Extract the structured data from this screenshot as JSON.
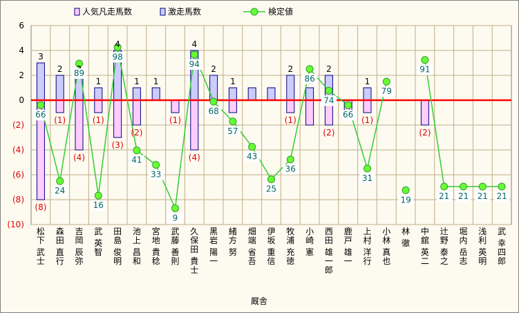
{
  "chart_data": {
    "type": "bar+line",
    "xlabel": "厩舎",
    "y_left": {
      "ylim": [
        -10,
        6
      ],
      "ticks": [
        "6",
        "4",
        "2",
        "0",
        "(2)",
        "(4)",
        "(6)",
        "(8)",
        "(10)"
      ]
    },
    "y_right": {
      "ylim": [
        0,
        110
      ]
    },
    "legend": [
      "人気凡走馬数",
      "激走馬数",
      "検定値"
    ],
    "categories": [
      "松下 武士",
      "森田 直行",
      "吉岡 辰弥",
      "武 英智",
      "田島 俊明",
      "池上 昌和",
      "宮地 貴稔",
      "武藤 善則",
      "久保田 貴士",
      "黒岩 陽一",
      "緒方 努",
      "畑端 省吾",
      "伊坂 重信",
      "牧浦 充徳",
      "小崎 憲",
      "西田 雄一郎",
      "鹿戸 雄一",
      "上村 洋行",
      "小林 真也",
      "林 徹",
      "中舘 英二",
      "辻野 泰之",
      "堀内 岳志",
      "浅利 英明",
      "武 幸四郎"
    ],
    "series": [
      {
        "name": "人気凡走馬数",
        "values": [
          -8,
          -1,
          -4,
          -1,
          -3,
          -2,
          0,
          -1,
          -4,
          0,
          -1,
          0,
          0,
          -1,
          -2,
          -2,
          -1,
          -1,
          0,
          0,
          -2,
          0,
          0,
          0,
          0
        ],
        "labels": [
          "(8)",
          "(1)",
          "(4)",
          "(1)",
          "(3)",
          "(2)",
          "",
          "(1)",
          "(4)",
          "",
          "",
          "",
          "",
          "(1)",
          "",
          "(2)",
          "",
          "(1)",
          "",
          "",
          "(2)",
          "",
          "",
          "",
          ""
        ]
      },
      {
        "name": "激走馬数",
        "values": [
          3,
          2,
          2,
          1,
          4,
          1,
          1,
          0,
          4,
          2,
          1,
          1,
          1,
          2,
          1,
          2,
          0,
          1,
          0,
          0,
          0,
          0,
          0,
          0,
          0
        ],
        "labels": [
          "3",
          "2",
          "2",
          "1",
          "4",
          "1",
          "1",
          "",
          "4",
          "2",
          "1",
          "",
          "",
          "2",
          "1",
          "2",
          "",
          "1",
          "",
          "",
          "",
          "",
          "",
          "",
          ""
        ]
      },
      {
        "name": "検定値",
        "values": [
          66,
          24,
          89,
          16,
          98,
          41,
          33,
          9,
          94,
          68,
          57,
          43,
          25,
          36,
          86,
          74,
          66,
          31,
          79,
          19,
          91,
          21,
          21,
          21,
          21
        ],
        "labels": [
          "66",
          "24",
          "89",
          "16",
          "98",
          "41",
          "33",
          "9",
          "94",
          "68",
          "57",
          "43",
          "25",
          "36",
          "86",
          "74",
          "66",
          "31",
          "79",
          "19",
          "91",
          "21",
          "21",
          "21",
          "21"
        ],
        "gaps_after_index": [
          18,
          19
        ]
      }
    ],
    "colors": {
      "bar_neg": "#ffccff",
      "bar_pos": "#ccccff",
      "bar_border": "#000080",
      "line": "#33cc33",
      "marker": "#66ff33",
      "zero_line": "#ff0000",
      "grid": "#bfae86",
      "plot_bg": "#fdfaf0"
    }
  }
}
